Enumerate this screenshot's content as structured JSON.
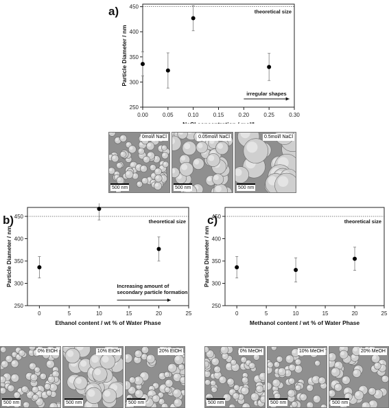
{
  "chart_data": [
    {
      "id": "a",
      "type": "scatter",
      "panel_label": "a)",
      "xlabel": "NaCl concentration / mol/l",
      "ylabel": "Particle Diameter / nm",
      "xlim": [
        0.0,
        0.3
      ],
      "ylim": [
        250,
        455
      ],
      "xticks": [
        0.0,
        0.05,
        0.1,
        0.15,
        0.2,
        0.25,
        0.3
      ],
      "xtick_labels": [
        "0.00",
        "0.05",
        "0.10",
        "0.15",
        "0.20",
        "0.25",
        "0.30"
      ],
      "yticks": [
        250,
        300,
        350,
        400,
        450
      ],
      "ytick_labels": [
        "250",
        "300",
        "350",
        "400",
        "450"
      ],
      "reference_line": {
        "y": 450,
        "label": "theoretical size"
      },
      "annotation": {
        "text": "irregular shapes",
        "x_from": 0.2,
        "x_to": 0.29
      },
      "points": [
        {
          "x": 0.0,
          "y": 336,
          "err": 24
        },
        {
          "x": 0.05,
          "y": 323,
          "err": 35
        },
        {
          "x": 0.1,
          "y": 427,
          "err": 25
        },
        {
          "x": 0.25,
          "y": 330,
          "err": 27
        }
      ]
    },
    {
      "id": "b",
      "type": "scatter",
      "panel_label": "b)",
      "xlabel": "Ethanol content / wt  % of Water Phase",
      "ylabel": "Particle Diameter / nm",
      "xlim": [
        -2,
        25
      ],
      "ylim": [
        250,
        470
      ],
      "xticks": [
        0,
        5,
        10,
        15,
        20,
        25
      ],
      "xtick_labels": [
        "0",
        "5",
        "10",
        "15",
        "20",
        "25"
      ],
      "yticks": [
        250,
        300,
        350,
        400,
        450
      ],
      "ytick_labels": [
        "250",
        "300",
        "350",
        "400",
        "450"
      ],
      "reference_line": {
        "y": 450,
        "label": "theoretical size"
      },
      "annotation": {
        "text_lines": [
          "Increasing amount of",
          "secondary particle formation"
        ],
        "x_from": 13,
        "x_to": 22
      },
      "points": [
        {
          "x": 0,
          "y": 336,
          "err": 24
        },
        {
          "x": 10,
          "y": 467,
          "err": 25
        },
        {
          "x": 20,
          "y": 377,
          "err": 27
        }
      ]
    },
    {
      "id": "c",
      "type": "scatter",
      "panel_label": "c)",
      "xlabel": "Methanol content / wt  % of Water Phase",
      "ylabel": "Particle Diameter / nm",
      "xlim": [
        -2,
        25
      ],
      "ylim": [
        250,
        470
      ],
      "xticks": [
        0,
        5,
        10,
        15,
        20,
        25
      ],
      "xtick_labels": [
        "0",
        "5",
        "10",
        "15",
        "20",
        "25"
      ],
      "yticks": [
        250,
        300,
        350,
        400,
        450
      ],
      "ytick_labels": [
        "250",
        "300",
        "350",
        "400",
        "450"
      ],
      "reference_line": {
        "y": 450,
        "label": "theoretical size"
      },
      "points": [
        {
          "x": 0,
          "y": 336,
          "err": 24
        },
        {
          "x": 10,
          "y": 330,
          "err": 27
        },
        {
          "x": 20,
          "y": 355,
          "err": 26
        }
      ]
    }
  ],
  "micrographs": {
    "a": [
      {
        "label": "0mol/l NaCl",
        "scale": "500 nm"
      },
      {
        "label": "0.05mol/l NaCl",
        "scale": "500 nm"
      },
      {
        "label": "0.5mol/l NaCl",
        "scale": "500 nm"
      }
    ],
    "b": [
      {
        "label": "0% EtOH",
        "scale": "500 nm"
      },
      {
        "label": "10% EtOH",
        "scale": "500 nm"
      },
      {
        "label": "20% EtOH",
        "scale": "500 nm"
      }
    ],
    "c": [
      {
        "label": "0% MeOH",
        "scale": "500 nm"
      },
      {
        "label": "10% MeOH",
        "scale": "500 nm"
      },
      {
        "label": "20% MeOH",
        "scale": "500 nm"
      }
    ]
  }
}
